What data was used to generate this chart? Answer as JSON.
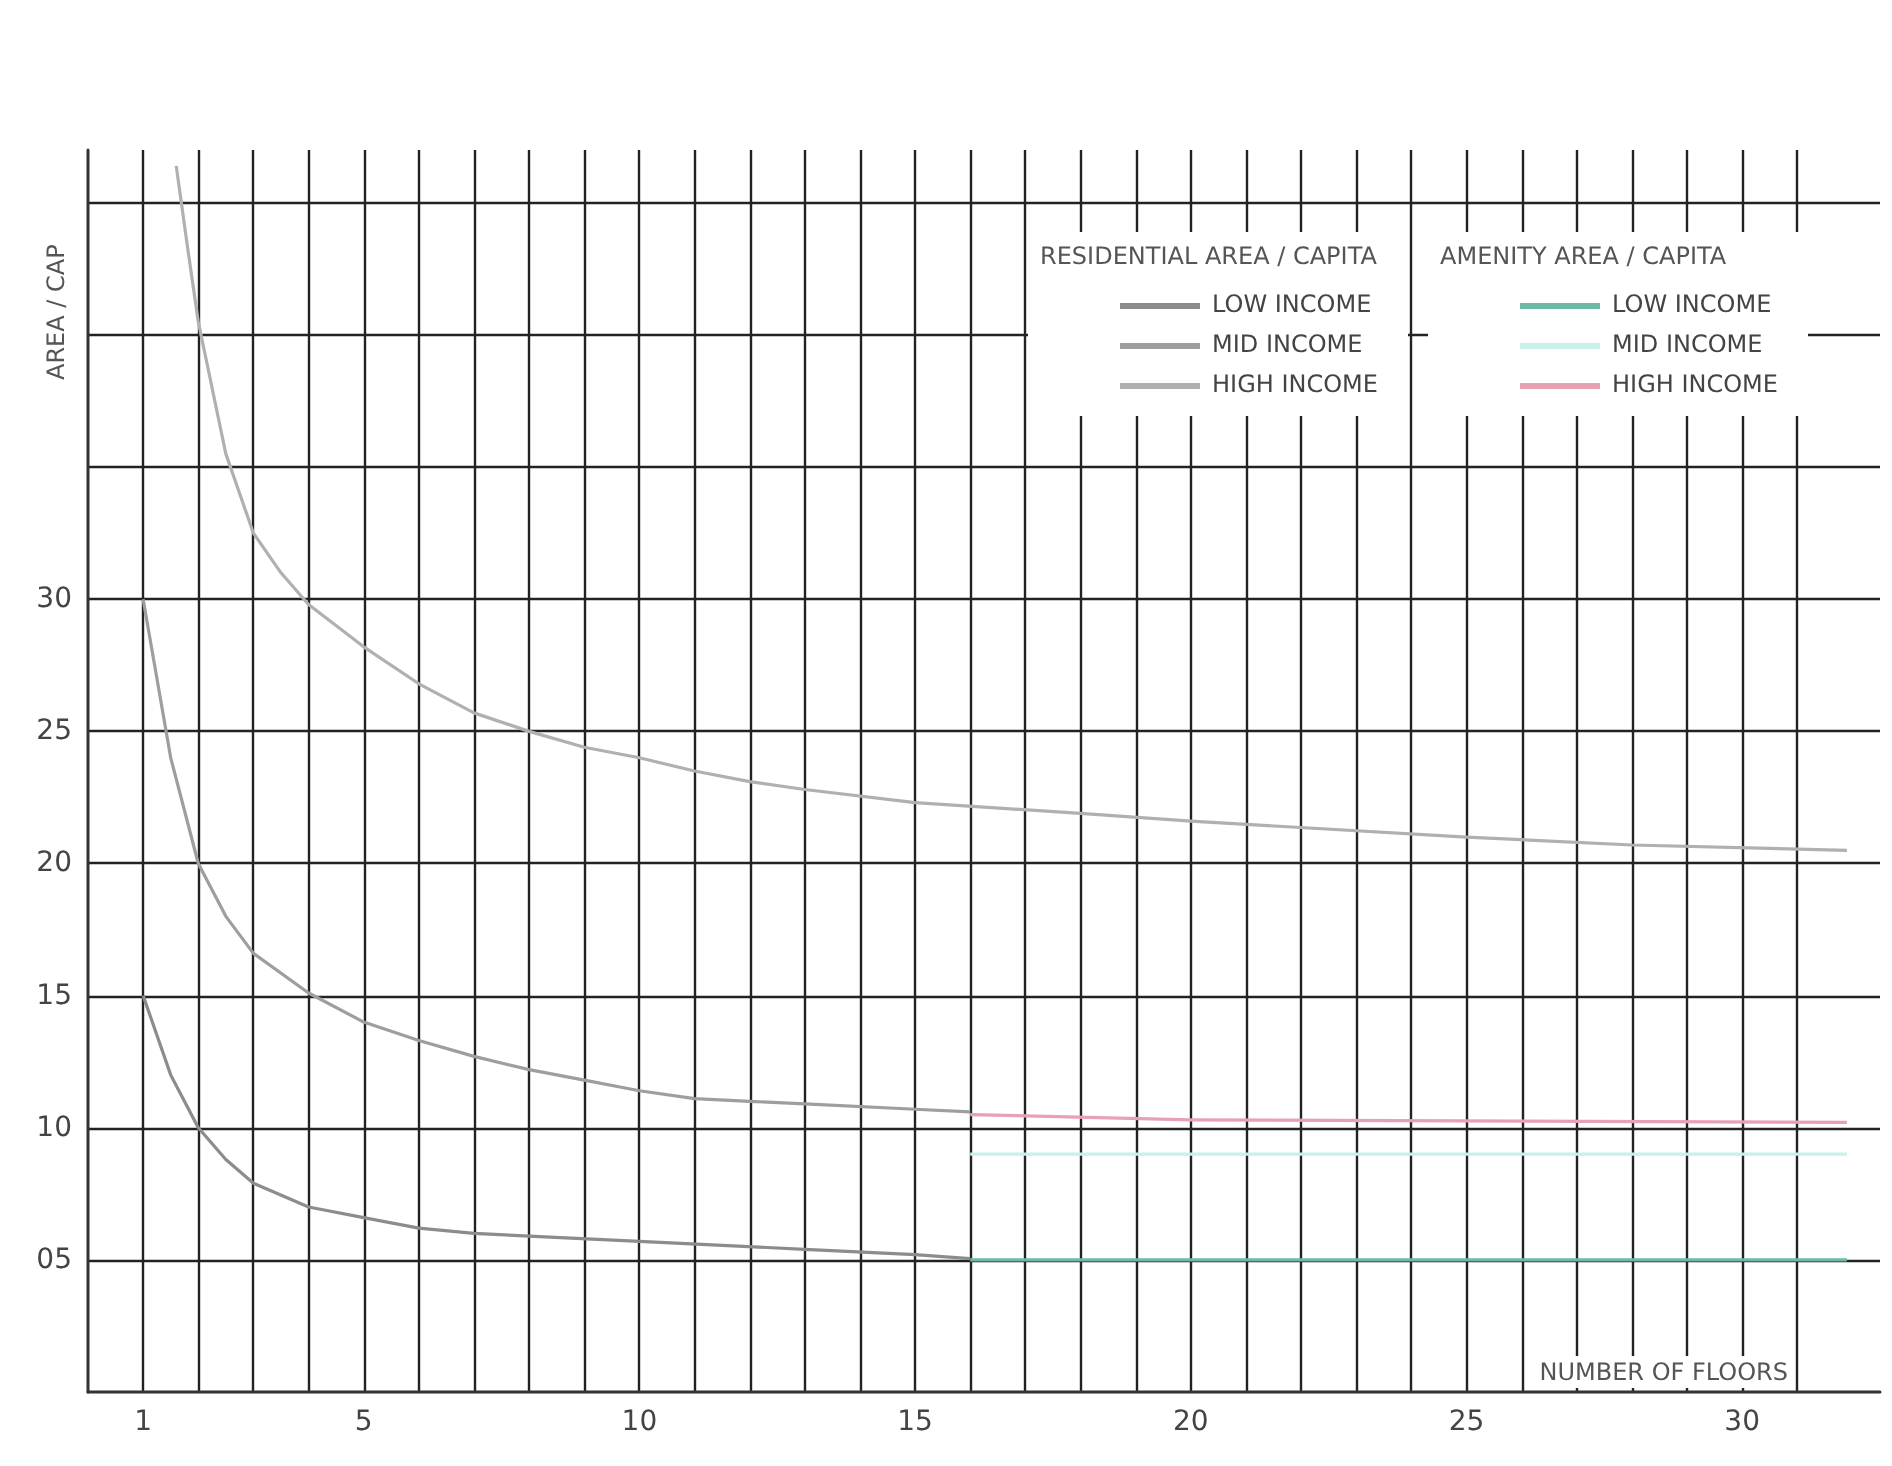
{
  "chart_data": {
    "type": "line",
    "xlabel": "NUMBER OF FLOORS",
    "ylabel": "AREA / CAP",
    "annotations": [
      "RESIDENTIAL AREA / CAPITA",
      "AMENITY AREA / CAPITA"
    ],
    "xlim": [
      0,
      32.5
    ],
    "ylim": [
      0,
      47
    ],
    "xticks": [
      1,
      {
        "value": 2,
        "label": null
      },
      {
        "value": 3,
        "label": null
      },
      {
        "value": 4,
        "label": null
      },
      5,
      {
        "value": 6,
        "label": null
      },
      {
        "value": 7,
        "label": null
      },
      {
        "value": 8,
        "label": null
      },
      {
        "value": 9,
        "label": null
      },
      10,
      {
        "value": 11,
        "label": null
      },
      {
        "value": 12,
        "label": null
      },
      {
        "value": 13,
        "label": null
      },
      {
        "value": 14,
        "label": null
      },
      15,
      {
        "value": 16,
        "label": null
      },
      {
        "value": 17,
        "label": null
      },
      {
        "value": 18,
        "label": null
      },
      {
        "value": 19,
        "label": null
      },
      20,
      {
        "value": 21,
        "label": null
      },
      {
        "value": 22,
        "label": null
      },
      {
        "value": 23,
        "label": null
      },
      {
        "value": 24,
        "label": null
      },
      25,
      {
        "value": 26,
        "label": null
      },
      {
        "value": 27,
        "label": null
      },
      {
        "value": 28,
        "label": null
      },
      {
        "value": 29,
        "label": null
      },
      30,
      {
        "value": 31,
        "label": null
      }
    ],
    "yticks": [
      {
        "value": 5,
        "label": "05"
      },
      10,
      15,
      20,
      25,
      30,
      {
        "value": 35,
        "label": null
      },
      {
        "value": 40,
        "label": null
      },
      {
        "value": 45,
        "label": null
      }
    ],
    "grid": true,
    "legend": "top right",
    "marker": "none",
    "series": [
      {
        "name": "LOW INCOME",
        "color": "#8c8c8c",
        "x": [
          1,
          1.5,
          2,
          2.5,
          3,
          4,
          5,
          6,
          7,
          8,
          10,
          13,
          15,
          16
        ],
        "values": [
          15,
          12,
          10,
          8.8,
          7.9,
          7,
          6.6,
          6.2,
          6,
          5.9,
          5.7,
          5.4,
          5.2,
          5.05
        ]
      },
      {
        "name": "MID INCOME",
        "color": "#9e9e9e",
        "x": [
          1,
          1.5,
          2,
          2.5,
          3,
          4,
          5,
          6,
          7,
          8,
          9,
          10,
          11,
          12,
          13,
          15,
          16
        ],
        "values": [
          30,
          24,
          20,
          18,
          16.6,
          15.1,
          14,
          13.3,
          12.7,
          12.2,
          11.8,
          11.4,
          11.1,
          11,
          10.9,
          10.7,
          10.6
        ]
      },
      {
        "name": "HIGH INCOME",
        "color": "#b0b0b0",
        "x": [
          1.6,
          1.8,
          2,
          2.5,
          3,
          3.5,
          4,
          5,
          6,
          7,
          8,
          9,
          10,
          11,
          12,
          13,
          15,
          18,
          20,
          25,
          28,
          31.9
        ],
        "values": [
          46.4,
          43.4,
          40.5,
          35.5,
          32.5,
          31,
          29.8,
          28.2,
          26.8,
          25.7,
          25,
          24.4,
          24,
          23.5,
          23.1,
          22.8,
          22.3,
          21.9,
          21.6,
          21,
          20.7,
          20.5
        ]
      },
      {
        "name": "LOW INCOME",
        "color": "#6fb8a8",
        "x": [
          16,
          31.9
        ],
        "values": [
          5,
          5
        ]
      },
      {
        "name": "MID INCOME",
        "color": "#c8f0ec",
        "x": [
          16,
          31.9
        ],
        "values": [
          9,
          9
        ]
      },
      {
        "name": "HIGH INCOME",
        "color": "#e8a0b4",
        "x": [
          16,
          20,
          31.9
        ],
        "values": [
          10.5,
          10.3,
          10.2
        ]
      }
    ]
  }
}
